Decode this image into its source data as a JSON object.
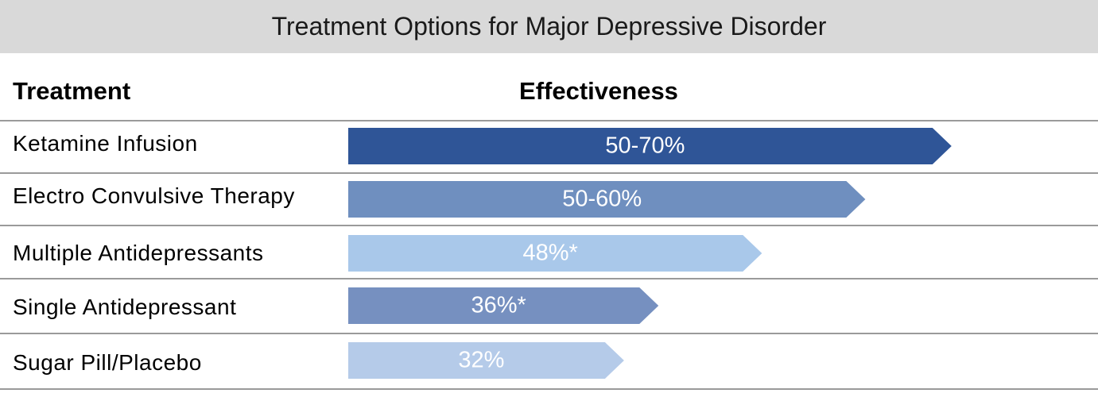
{
  "title": "Treatment Options for Major Depressive Disorder",
  "headers": {
    "treatment": "Treatment",
    "effectiveness": "Effectiveness"
  },
  "chart_data": {
    "type": "bar",
    "orientation": "horizontal",
    "title": "Treatment Options for Major Depressive Disorder",
    "categories": [
      "Ketamine Infusion",
      "Electro Convulsive Therapy",
      "Multiple Antidepressants",
      "Single Antidepressant",
      "Sugar Pill/Placebo"
    ],
    "values": [
      70,
      60,
      48,
      36,
      32
    ],
    "labels": [
      "50-70%",
      "50-60%",
      "48%*",
      "36%*",
      "32%"
    ],
    "colors": [
      "#2f5597",
      "#6f8fbf",
      "#a9c8ea",
      "#7690c0",
      "#b5cbe9"
    ],
    "grid": false,
    "legend": "none"
  }
}
